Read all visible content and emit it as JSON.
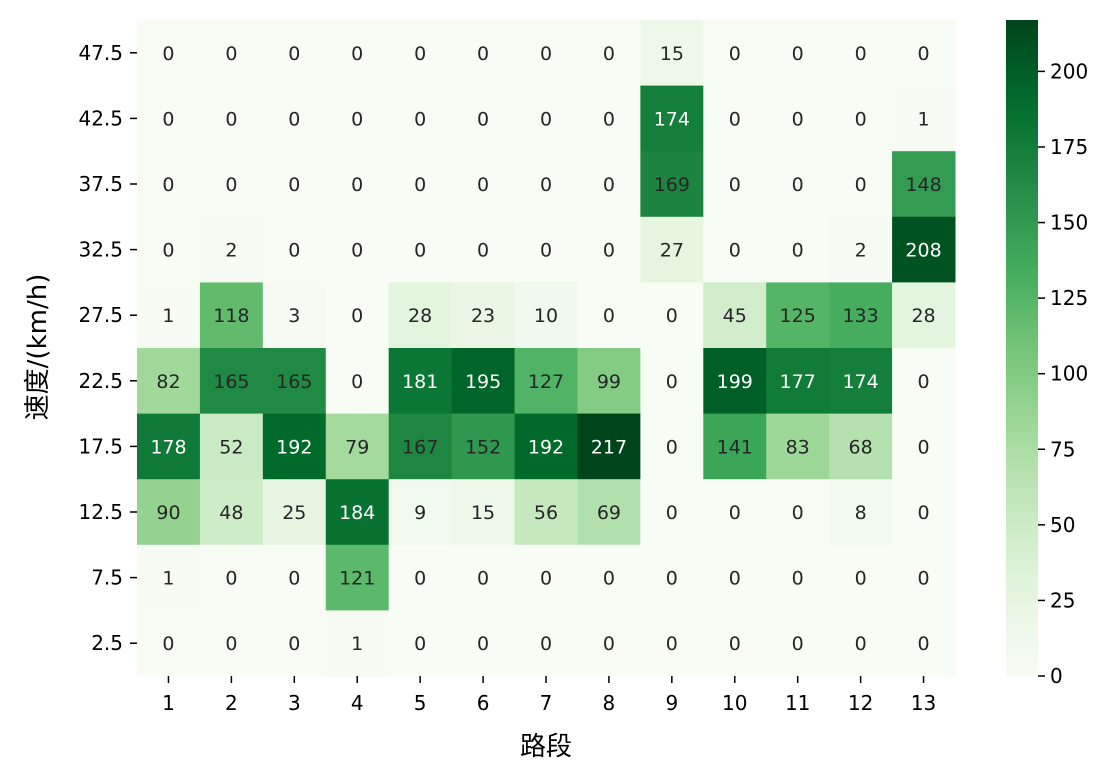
{
  "chart_data": {
    "type": "heatmap",
    "title": "",
    "xlabel": "路段",
    "ylabel": "速度/(km/h)",
    "x_categories": [
      "1",
      "2",
      "3",
      "4",
      "5",
      "6",
      "7",
      "8",
      "9",
      "10",
      "11",
      "12",
      "13"
    ],
    "y_categories": [
      "47.5",
      "42.5",
      "37.5",
      "32.5",
      "27.5",
      "22.5",
      "17.5",
      "12.5",
      "7.5",
      "2.5"
    ],
    "values": [
      [
        0,
        0,
        0,
        0,
        0,
        0,
        0,
        0,
        15,
        0,
        0,
        0,
        0
      ],
      [
        0,
        0,
        0,
        0,
        0,
        0,
        0,
        0,
        174,
        0,
        0,
        0,
        1
      ],
      [
        0,
        0,
        0,
        0,
        0,
        0,
        0,
        0,
        169,
        0,
        0,
        0,
        148
      ],
      [
        0,
        2,
        0,
        0,
        0,
        0,
        0,
        0,
        27,
        0,
        0,
        2,
        208
      ],
      [
        1,
        118,
        3,
        0,
        28,
        23,
        10,
        0,
        0,
        45,
        125,
        133,
        28
      ],
      [
        82,
        165,
        165,
        0,
        181,
        195,
        127,
        99,
        0,
        199,
        177,
        174,
        0
      ],
      [
        178,
        52,
        192,
        79,
        167,
        152,
        192,
        217,
        0,
        141,
        83,
        68,
        0
      ],
      [
        90,
        48,
        25,
        184,
        9,
        15,
        56,
        69,
        0,
        0,
        0,
        8,
        0
      ],
      [
        1,
        0,
        0,
        121,
        0,
        0,
        0,
        0,
        0,
        0,
        0,
        0,
        0
      ],
      [
        0,
        0,
        0,
        1,
        0,
        0,
        0,
        0,
        0,
        0,
        0,
        0,
        0
      ]
    ],
    "vmin": 0,
    "vmax": 217,
    "colormap": "Greens",
    "colorbar": {
      "ticks": [
        0,
        25,
        50,
        75,
        100,
        125,
        150,
        175,
        200
      ],
      "labels": [
        "0",
        "25",
        "50",
        "75",
        "100",
        "125",
        "150",
        "175",
        "200"
      ]
    },
    "annotate": true,
    "grid": false,
    "legend": "colorbar-right"
  }
}
